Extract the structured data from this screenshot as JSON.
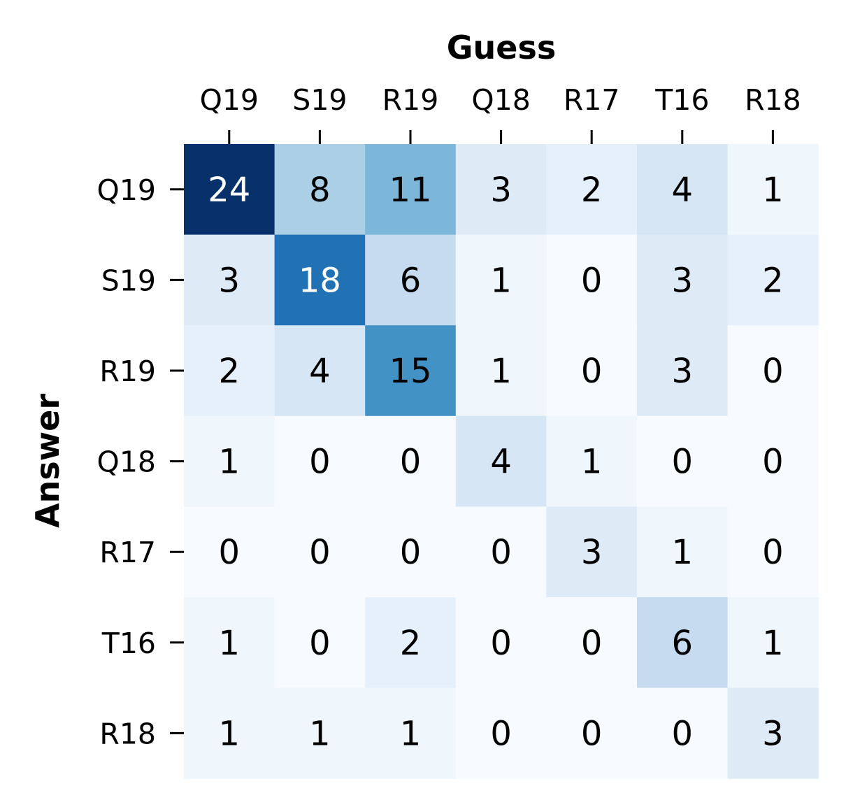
{
  "chart_data": {
    "type": "heatmap",
    "xlabel": "Guess",
    "ylabel": "Answer",
    "x_categories": [
      "Q19",
      "S19",
      "R19",
      "Q18",
      "R17",
      "T16",
      "R18"
    ],
    "y_categories": [
      "Q19",
      "S19",
      "R19",
      "Q18",
      "R17",
      "T16",
      "R18"
    ],
    "values": [
      [
        24,
        8,
        11,
        3,
        2,
        4,
        1
      ],
      [
        3,
        18,
        6,
        1,
        0,
        3,
        2
      ],
      [
        2,
        4,
        15,
        1,
        0,
        3,
        0
      ],
      [
        1,
        0,
        0,
        4,
        1,
        0,
        0
      ],
      [
        0,
        0,
        0,
        0,
        3,
        1,
        0
      ],
      [
        1,
        0,
        2,
        0,
        0,
        6,
        1
      ],
      [
        1,
        1,
        1,
        0,
        0,
        0,
        3
      ]
    ],
    "colormap": "Blues",
    "vmin": 0,
    "vmax": 24,
    "x_tick_position": "top",
    "colorbar": false,
    "grid": false
  }
}
